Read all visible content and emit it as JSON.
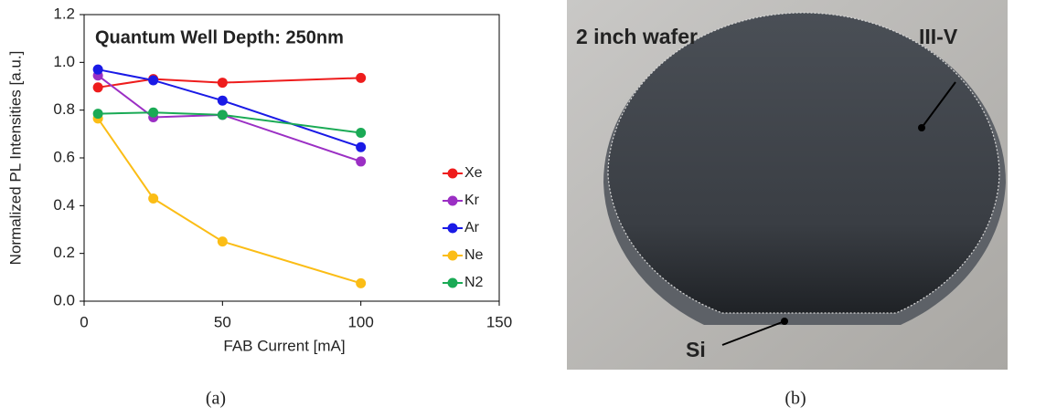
{
  "chart_data": {
    "type": "line",
    "annotation": "Quantum Well Depth: 250nm",
    "xlabel": "FAB Current [mA]",
    "ylabel": "Normalized  PL Intensities [a.u.]",
    "x": [
      5,
      25,
      50,
      100
    ],
    "xlim": [
      0,
      150
    ],
    "xticks": [
      0,
      50,
      100,
      150
    ],
    "ylim": [
      0,
      1.2
    ],
    "yticks": [
      {
        "value": 0,
        "label": "0.0"
      },
      0.2,
      0.4,
      0.6,
      0.8,
      {
        "value": 1,
        "label": "1.0"
      },
      1.2
    ],
    "legend": "right",
    "series": [
      {
        "name": "Xe",
        "color": "#ee1c1c",
        "values": [
          0.895,
          0.93,
          0.915,
          0.935
        ]
      },
      {
        "name": "Kr",
        "color": "#9b2fc4",
        "values": [
          0.945,
          0.77,
          0.78,
          0.585
        ]
      },
      {
        "name": "Ar",
        "color": "#1a1ae6",
        "values": [
          0.97,
          0.925,
          0.84,
          0.645
        ]
      },
      {
        "name": "Ne",
        "color": "#fbbd16",
        "values": [
          0.765,
          0.43,
          0.25,
          0.075
        ]
      },
      {
        "name": "N2",
        "color": "#1aaa55",
        "values": [
          0.785,
          0.79,
          0.78,
          0.705
        ]
      }
    ]
  },
  "photo": {
    "wafer": "2 inch wafer",
    "top": "III-V",
    "bottom": "Si"
  },
  "captions": [
    "(a)",
    "(b)"
  ]
}
